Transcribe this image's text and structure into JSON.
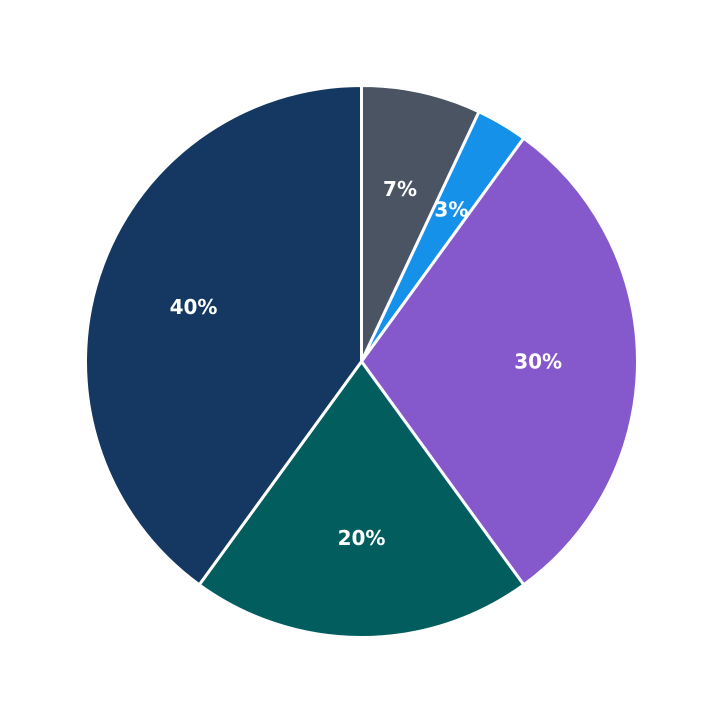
{
  "chart_data": {
    "type": "pie",
    "title": "",
    "legend": "none",
    "start_angle_deg": 90,
    "direction": "clockwise",
    "slices": [
      {
        "value": 7,
        "label": "7%",
        "color": "#4a5463"
      },
      {
        "value": 3,
        "label": "3%",
        "color": "#1591ea"
      },
      {
        "value": 30,
        "label": "30%",
        "color": "#8558cc"
      },
      {
        "value": 20,
        "label": "20%",
        "color": "#025e5e"
      },
      {
        "value": 40,
        "label": "40%",
        "color": "#143861"
      }
    ]
  }
}
